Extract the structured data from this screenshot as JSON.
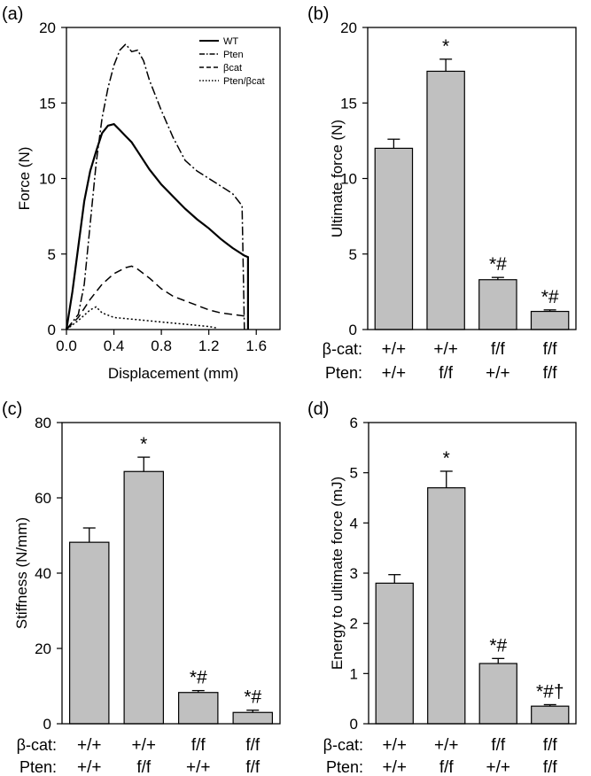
{
  "chart_data": [
    {
      "panel": "(a)",
      "type": "line",
      "xlabel": "Displacement (mm)",
      "ylabel": "Force (N)",
      "xlim": [
        0.0,
        1.8
      ],
      "ylim": [
        0,
        20
      ],
      "xticks": [
        "0.0",
        "0.4",
        "0.8",
        "1.2",
        "1.6"
      ],
      "yticks": [
        "0",
        "5",
        "10",
        "15",
        "20"
      ],
      "legend_position": "top-right",
      "series": [
        {
          "name": "WT",
          "style": "solid",
          "x": [
            0,
            0.05,
            0.1,
            0.15,
            0.2,
            0.25,
            0.3,
            0.35,
            0.4,
            0.45,
            0.5,
            0.55,
            0.6,
            0.7,
            0.8,
            0.9,
            1.0,
            1.1,
            1.2,
            1.3,
            1.4,
            1.5,
            1.53,
            1.53
          ],
          "y": [
            0,
            2.5,
            5.5,
            8.5,
            10.5,
            11.8,
            13.0,
            13.5,
            13.6,
            13.2,
            12.8,
            12.4,
            11.8,
            10.6,
            9.6,
            8.8,
            8.0,
            7.3,
            6.7,
            6.0,
            5.4,
            4.9,
            4.8,
            0
          ]
        },
        {
          "name": "Pten",
          "style": "dash-dot",
          "x": [
            0,
            0.1,
            0.15,
            0.2,
            0.25,
            0.3,
            0.35,
            0.4,
            0.45,
            0.5,
            0.55,
            0.6,
            0.65,
            0.7,
            0.8,
            0.9,
            1.0,
            1.1,
            1.2,
            1.3,
            1.4,
            1.48,
            1.5
          ],
          "y": [
            0,
            1.0,
            3.0,
            7.0,
            11.0,
            14.0,
            16.0,
            17.5,
            18.5,
            18.9,
            18.4,
            18.5,
            17.8,
            16.5,
            14.5,
            12.7,
            11.2,
            10.5,
            10.0,
            9.5,
            9.0,
            8.2,
            0
          ]
        },
        {
          "name": "βcat",
          "style": "dashed",
          "x": [
            0,
            0.1,
            0.2,
            0.3,
            0.4,
            0.5,
            0.55,
            0.6,
            0.7,
            0.8,
            0.9,
            1.0,
            1.1,
            1.2,
            1.3,
            1.4,
            1.5
          ],
          "y": [
            0,
            0.8,
            2.0,
            3.0,
            3.7,
            4.1,
            4.2,
            4.0,
            3.4,
            2.7,
            2.2,
            1.9,
            1.6,
            1.3,
            1.1,
            1.0,
            0.9
          ]
        },
        {
          "name": "Pten/βcat",
          "style": "dotted",
          "x": [
            0,
            0.1,
            0.2,
            0.25,
            0.3,
            0.4,
            0.6,
            0.8,
            1.0,
            1.2,
            1.27
          ],
          "y": [
            0,
            0.6,
            1.3,
            1.5,
            1.1,
            0.8,
            0.65,
            0.5,
            0.35,
            0.2,
            0.1
          ]
        }
      ]
    },
    {
      "panel": "(b)",
      "type": "bar",
      "ylabel": "Ultimate force (N)",
      "ylim": [
        0,
        20
      ],
      "yticks": [
        "0",
        "5",
        "10",
        "15",
        "20"
      ],
      "values": [
        12.0,
        17.1,
        3.3,
        1.2
      ],
      "errors": [
        0.6,
        0.8,
        0.15,
        0.1
      ],
      "annotations": [
        "",
        "*",
        "*#",
        "*#"
      ]
    },
    {
      "panel": "(c)",
      "type": "bar",
      "ylabel": "Stiffness (N/mm)",
      "ylim": [
        0,
        80
      ],
      "yticks": [
        "0",
        "20",
        "40",
        "60",
        "80"
      ],
      "values": [
        48.2,
        67.0,
        8.3,
        3.0
      ],
      "errors": [
        3.8,
        3.8,
        0.5,
        0.6
      ],
      "annotations": [
        "",
        "*",
        "*#",
        "*#"
      ]
    },
    {
      "panel": "(d)",
      "type": "bar",
      "ylabel": "Energy to ultimate force (mJ)",
      "ylim": [
        0,
        6
      ],
      "yticks": [
        "0",
        "1",
        "2",
        "3",
        "4",
        "5",
        "6"
      ],
      "values": [
        2.8,
        4.7,
        1.2,
        0.35
      ],
      "errors": [
        0.17,
        0.33,
        0.1,
        0.03
      ],
      "annotations": [
        "",
        "*",
        "*#",
        "*#†"
      ]
    }
  ],
  "genotypes": {
    "beta_cat_label": "β-cat:",
    "pten_label": "Pten:",
    "beta_cat": [
      "+/+",
      "+/+",
      "f/f",
      "f/f"
    ],
    "pten": [
      "+/+",
      "f/f",
      "+/+",
      "f/f"
    ]
  },
  "colors": {
    "bar_fill": "#c0c0c0",
    "axis": "#000000"
  }
}
